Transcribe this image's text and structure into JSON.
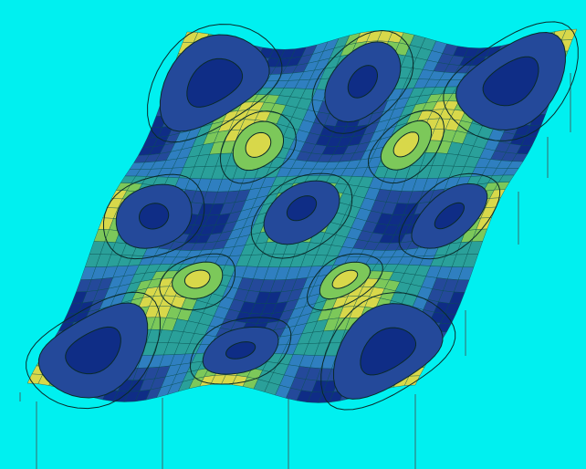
{
  "figure": {
    "kind": "3d-surface-contour-plot",
    "background_color": "#00f0f0",
    "surface_colors": {
      "plateau": "#2aa09a",
      "mid": "#2f7fc0",
      "deep": "#24499a",
      "deepest": "#0f2d86",
      "peak": "#7cc85a",
      "peak_tip": "#d8d84a",
      "mesh_line": "#0a4a4a",
      "contour_line": "#0a2a2a",
      "projection_line": "#3a6a6a"
    },
    "surface_grid": {
      "rows": 36,
      "cols": 36
    },
    "wells": {
      "count": 9,
      "layout": "3x3"
    },
    "peaks": {
      "count": 4,
      "layout": "2x2"
    },
    "drop_lines": {
      "count": 9
    }
  }
}
